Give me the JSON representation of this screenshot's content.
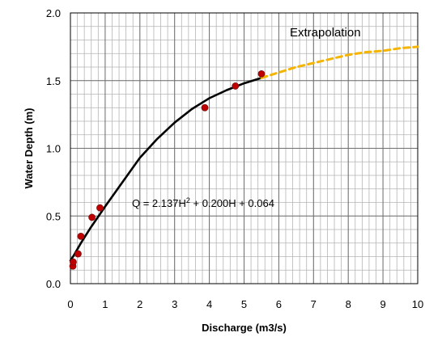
{
  "chart_data": {
    "type": "scatter",
    "xlabel": "Discharge  (m3/s)",
    "ylabel": "Water Depth (m)",
    "xlim": [
      0,
      10
    ],
    "ylim": [
      0,
      2.0
    ],
    "x_ticks": [
      "0",
      "1",
      "2",
      "3",
      "4",
      "5",
      "6",
      "7",
      "8",
      "9",
      "10"
    ],
    "y_ticks": [
      "0.0",
      "0.5",
      "1.0",
      "1.5",
      "2.0"
    ],
    "grid": true,
    "grid_minor_x": 0.2,
    "grid_minor_y": 0.1,
    "series": [
      {
        "type": "scatter",
        "color": "#c00000",
        "points": [
          {
            "x": 0.07,
            "y": 0.13
          },
          {
            "x": 0.08,
            "y": 0.16
          },
          {
            "x": 0.22,
            "y": 0.22
          },
          {
            "x": 0.3,
            "y": 0.35
          },
          {
            "x": 0.62,
            "y": 0.49
          },
          {
            "x": 0.85,
            "y": 0.56
          },
          {
            "x": 3.87,
            "y": 1.3
          },
          {
            "x": 4.75,
            "y": 1.46
          },
          {
            "x": 5.5,
            "y": 1.55
          }
        ]
      },
      {
        "type": "line",
        "color": "#000000",
        "x": [
          0.0,
          0.1,
          0.3,
          0.6,
          1.0,
          1.5,
          2.0,
          2.5,
          3.0,
          3.5,
          4.0,
          4.5,
          5.0,
          5.5
        ],
        "y": [
          0.17,
          0.21,
          0.3,
          0.42,
          0.57,
          0.75,
          0.93,
          1.07,
          1.19,
          1.29,
          1.37,
          1.43,
          1.48,
          1.52
        ]
      },
      {
        "type": "line",
        "style": "dashed",
        "color": "#f4b400",
        "x": [
          5.5,
          6.0,
          6.5,
          7.0,
          7.5,
          8.0,
          8.5,
          9.0,
          9.5,
          10.0
        ],
        "y": [
          1.52,
          1.56,
          1.6,
          1.63,
          1.66,
          1.69,
          1.71,
          1.72,
          1.74,
          1.75
        ]
      }
    ],
    "annotations": {
      "extrapolation": "Extrapolation",
      "equation_prefix": "Q = 2.137H",
      "equation_exp": "2",
      "equation_suffix": " + 0.200H + 0.064"
    }
  }
}
